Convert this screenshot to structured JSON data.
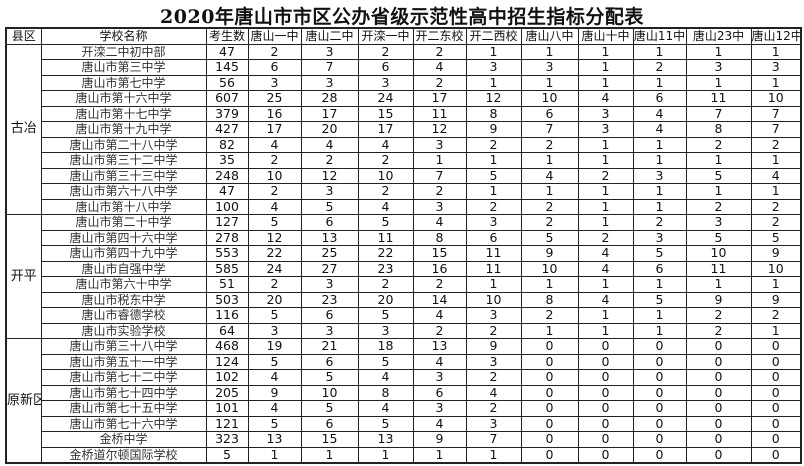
{
  "title": "2020年唐山市市区公办省级示范性高中招生指标分配表",
  "headers": [
    "县区",
    "学校名称",
    "考生数",
    "唐山一中",
    "唐山二中",
    "开滦一中",
    "开二东校",
    "开二西校",
    "唐山八中",
    "唐山十中",
    "唐山11中",
    "唐山23中",
    "唐山12中"
  ],
  "regions": [
    {
      "name": "古冶",
      "rows": [
        {
          "school": "开滦二中初中部",
          "values": [
            47,
            2,
            3,
            2,
            2,
            1,
            1,
            1,
            1,
            1,
            1
          ]
        },
        {
          "school": "唐山市第三中学",
          "values": [
            145,
            6,
            7,
            6,
            4,
            3,
            3,
            1,
            2,
            3,
            3
          ]
        },
        {
          "school": "唐山市第七中学",
          "values": [
            56,
            3,
            3,
            3,
            2,
            1,
            1,
            1,
            1,
            1,
            1
          ]
        },
        {
          "school": "唐山市第十六中学",
          "values": [
            607,
            25,
            28,
            24,
            17,
            12,
            10,
            4,
            6,
            11,
            10
          ]
        },
        {
          "school": "唐山市第十七中学",
          "values": [
            379,
            16,
            17,
            15,
            11,
            8,
            6,
            3,
            4,
            7,
            7
          ]
        },
        {
          "school": "唐山市第十九中学",
          "values": [
            427,
            17,
            20,
            17,
            12,
            9,
            7,
            3,
            4,
            8,
            7
          ]
        },
        {
          "school": "唐山市第二十八中学",
          "values": [
            82,
            4,
            4,
            4,
            3,
            2,
            2,
            1,
            1,
            2,
            2
          ]
        },
        {
          "school": "唐山市第三十二中学",
          "values": [
            35,
            2,
            2,
            2,
            1,
            1,
            1,
            1,
            1,
            1,
            1
          ]
        },
        {
          "school": "唐山市第三十三中学",
          "values": [
            248,
            10,
            12,
            10,
            7,
            5,
            4,
            2,
            3,
            5,
            4
          ]
        },
        {
          "school": "唐山市第六十八中学",
          "values": [
            47,
            2,
            3,
            2,
            2,
            1,
            1,
            1,
            1,
            1,
            1
          ]
        },
        {
          "school": "唐山市第十八中学",
          "values": [
            100,
            4,
            5,
            4,
            3,
            2,
            2,
            1,
            1,
            2,
            2
          ]
        }
      ]
    },
    {
      "name": "开平",
      "rows": [
        {
          "school": "唐山市第二十中学",
          "values": [
            127,
            5,
            6,
            5,
            4,
            3,
            2,
            1,
            2,
            3,
            2
          ]
        },
        {
          "school": "唐山市第四十六中学",
          "values": [
            278,
            12,
            13,
            11,
            8,
            6,
            5,
            2,
            3,
            5,
            5
          ]
        },
        {
          "school": "唐山市第四十九中学",
          "values": [
            553,
            22,
            25,
            22,
            15,
            11,
            9,
            4,
            5,
            10,
            9
          ]
        },
        {
          "school": "唐山市自强中学",
          "values": [
            585,
            24,
            27,
            23,
            16,
            11,
            10,
            4,
            6,
            11,
            10
          ]
        },
        {
          "school": "唐山市第六十中学",
          "values": [
            51,
            2,
            3,
            2,
            2,
            1,
            1,
            1,
            1,
            1,
            1
          ]
        },
        {
          "school": "唐山市税东中学",
          "values": [
            503,
            20,
            23,
            20,
            14,
            10,
            8,
            4,
            5,
            9,
            9
          ]
        },
        {
          "school": "唐山市睿德学校",
          "values": [
            116,
            5,
            6,
            5,
            4,
            3,
            2,
            1,
            1,
            2,
            2
          ]
        },
        {
          "school": "唐山市实验学校",
          "values": [
            64,
            3,
            3,
            3,
            2,
            2,
            1,
            1,
            1,
            2,
            1
          ]
        }
      ]
    },
    {
      "name": "原新区",
      "rows": [
        {
          "school": "唐山市第三十八中学",
          "values": [
            468,
            19,
            21,
            18,
            13,
            9,
            0,
            0,
            0,
            0,
            0
          ]
        },
        {
          "school": "唐山市第五十一中学",
          "values": [
            124,
            5,
            6,
            5,
            4,
            3,
            0,
            0,
            0,
            0,
            0
          ]
        },
        {
          "school": "唐山市第七十二中学",
          "values": [
            102,
            4,
            5,
            4,
            3,
            2,
            0,
            0,
            0,
            0,
            0
          ]
        },
        {
          "school": "唐山市第七十四中学",
          "values": [
            205,
            9,
            10,
            8,
            6,
            4,
            0,
            0,
            0,
            0,
            0
          ]
        },
        {
          "school": "唐山市第七十五中学",
          "values": [
            101,
            4,
            5,
            4,
            3,
            2,
            0,
            0,
            0,
            0,
            0
          ]
        },
        {
          "school": "唐山市第七十六中学",
          "values": [
            121,
            5,
            6,
            5,
            4,
            3,
            0,
            0,
            0,
            0,
            0
          ]
        },
        {
          "school": "金桥中学",
          "values": [
            323,
            13,
            15,
            13,
            9,
            7,
            0,
            0,
            0,
            0,
            0
          ]
        },
        {
          "school": "金桥道尔顿国际学校",
          "values": [
            5,
            1,
            1,
            1,
            1,
            1,
            0,
            0,
            0,
            0,
            0
          ]
        }
      ]
    }
  ]
}
